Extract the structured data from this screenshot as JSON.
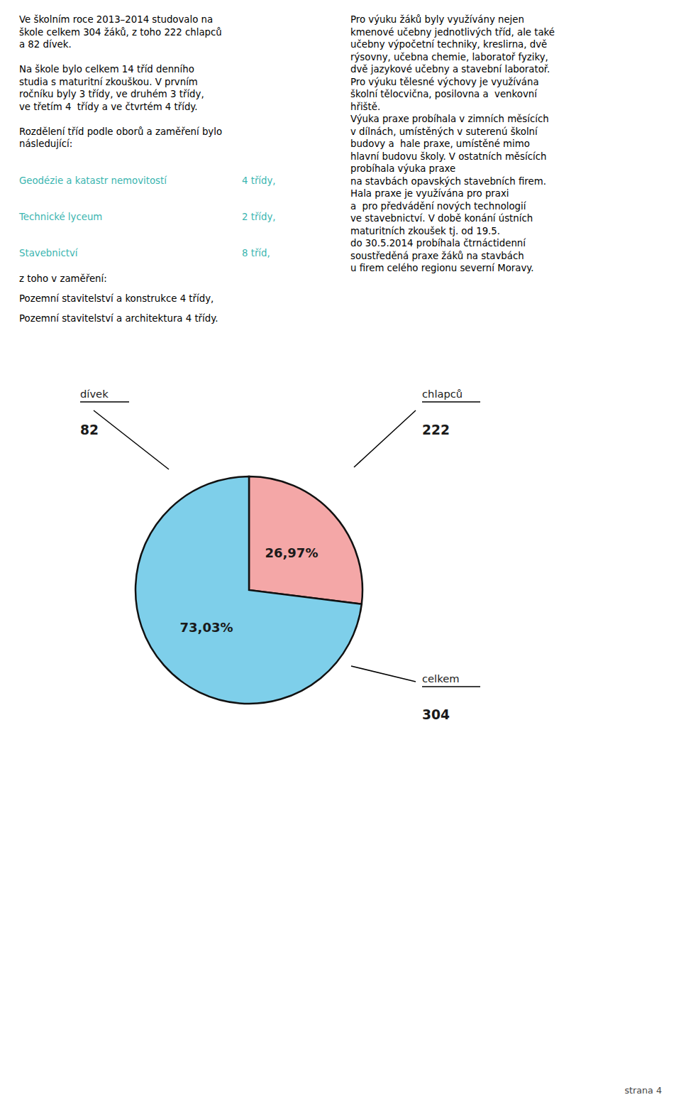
{
  "chart_data": {
    "type": "pie",
    "categories": [
      "dívek",
      "chlapců"
    ],
    "values": [
      26.97,
      73.03
    ],
    "value_labels": [
      "26,97%",
      "73,03%"
    ],
    "data_labels": true,
    "colors": [
      "#f4a7a7",
      "#7ecfea"
    ],
    "counts": [
      82,
      222
    ],
    "total_label": "celkem",
    "total": 304,
    "left_column": [
      [
        "Ve školním roce 2013–2014 studovalo na",
        "škole celkem 304 žáků, z toho 222 chlapců",
        "a 82 dívek."
      ],
      [
        "Na škole bylo celkem 14 tříd denního",
        "studia s maturitní zkouškou. V prvním",
        "ročníku byly 3 třídy, ve druhém 3 třídy,",
        "ve třetím 4  třídy a ve čtvrtém 4 třídy."
      ],
      [
        "Rozdělení tříd podle oborů a zaměření bylo",
        "následující:"
      ]
    ],
    "right_column": [
      "Pro výuku žáků byly využívány nejen",
      "kmenové učebny jednotlivých tříd, ale také",
      "učebny výpočetní techniky, kreslirna, dvě",
      "rýsovny, učebna chemie, laboratoř fyziky,",
      "dvě jazykové učebny a stavební laboratoř.",
      "Pro výuku tělesné výchovy je využívána",
      "školní tělocvična, posilovna a  venkovní",
      "hřiště.",
      "Výuka praxe probíhala v zimních měsících",
      "v dílnách, umístěných v suterenú školní",
      "budovy a  hale praxe, umístěné mimo",
      "hlavní budovu školy. V ostatních měsících",
      "probíhala výuka praxe",
      "na stavbách opavských stavebních firem.",
      "Hala praxe je využívána pro praxi",
      "a  pro předvádění nových technologií",
      "ve stavebnictví. V době konání ústních",
      "maturitních zkoušek tj. od 19.5.",
      "do 30.5.2014 probíhala čtrnáctidenní",
      "soustředěná praxe žáků na stavbách",
      "u firem celého regionu severní Moravy."
    ],
    "highlight_color": "#3ab5b0",
    "entries": [
      {
        "label": "Geodézie a katastr nemovitostí",
        "value": "4 třídy,",
        "highlight": true
      },
      {
        "label": "Technické lyceum",
        "value": "2 třídy,",
        "highlight": true
      },
      {
        "label": "Stavebnictví",
        "value": "8 tříd,",
        "highlight": true
      },
      {
        "label": "z toho v zaměření:",
        "highlight": false
      },
      {
        "label": "Pozemní stavitelství a konstrukce 4 třídy,",
        "highlight": false
      },
      {
        "label": "Pozemní stavitelství a architektura 4 třídy.",
        "highlight": false
      }
    ],
    "footer": "strana 4"
  }
}
